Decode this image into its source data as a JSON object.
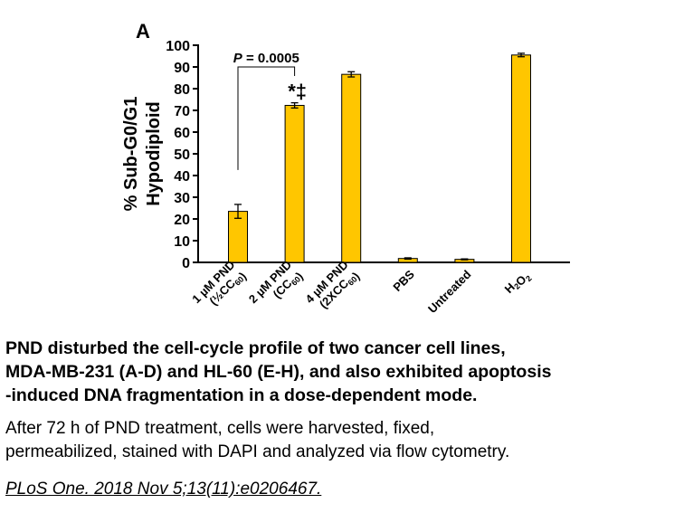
{
  "panel_label": "A",
  "chart_data": {
    "type": "bar",
    "ylabel_lines": [
      "% Sub-G0/G1",
      "Hypodiploid"
    ],
    "ylim": [
      0,
      100
    ],
    "yticks": [
      0,
      10,
      20,
      30,
      40,
      50,
      60,
      70,
      80,
      90,
      100
    ],
    "categories": [
      {
        "lines": [
          [
            {
              "t": "1 µM PND"
            }
          ],
          [
            {
              "t": "(½CC"
            },
            {
              "t": "60",
              "sub": true
            },
            {
              "t": ")"
            }
          ]
        ]
      },
      {
        "lines": [
          [
            {
              "t": "2 µM PND"
            }
          ],
          [
            {
              "t": "(CC"
            },
            {
              "t": "60",
              "sub": true
            },
            {
              "t": ")"
            }
          ]
        ]
      },
      {
        "lines": [
          [
            {
              "t": "4 µM PND"
            }
          ],
          [
            {
              "t": "(2XCC"
            },
            {
              "t": "60",
              "sub": true
            },
            {
              "t": ")"
            }
          ]
        ]
      },
      {
        "lines": [
          [
            {
              "t": "PBS"
            }
          ]
        ]
      },
      {
        "lines": [
          [
            {
              "t": "Untreated"
            }
          ]
        ]
      },
      {
        "lines": [
          [
            {
              "t": "H"
            },
            {
              "t": "2",
              "sub": true
            },
            {
              "t": "O"
            },
            {
              "t": "2",
              "sub": true
            }
          ]
        ]
      }
    ],
    "values": [
      23.5,
      72.3,
      86.6,
      1.8,
      1.4,
      95.5
    ],
    "errors": [
      3.2,
      1.2,
      1.2,
      0.3,
      0.2,
      0.8
    ],
    "bar_color": "#FFC600",
    "annotations": {
      "p_value_text": "P = 0.0005",
      "significance_marks": "*‡"
    }
  },
  "caption": {
    "title_lines": [
      "PND disturbed the cell-cycle profile of two cancer cell lines,",
      "MDA-MB-231 (A-D) and HL-60 (E-H), and also exhibited apoptosis",
      "-induced DNA fragmentation in a dose-dependent mode."
    ],
    "body_lines": [
      "After 72 h of PND treatment, cells were harvested, fixed,",
      "permeabilized, stained with DAPI and analyzed via flow cytometry."
    ],
    "citation": "PLoS One. 2018 Nov 5;13(11):e0206467."
  }
}
